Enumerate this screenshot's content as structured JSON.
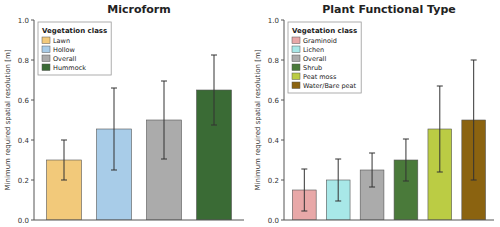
{
  "chart_data": [
    {
      "type": "bar",
      "title": "Microform",
      "ylabel": "Minimum required spatial resolution [m]",
      "categories": [
        "Lawn",
        "Hollow",
        "Overall",
        "Hummock"
      ],
      "values": [
        0.3,
        0.455,
        0.5,
        0.65
      ],
      "errors": [
        0.1,
        0.205,
        0.195,
        0.175
      ],
      "colors": [
        "#F2C97A",
        "#A8CCE8",
        "#ABABAB",
        "#3A6B35"
      ],
      "ylim": [
        0.0,
        1.0
      ],
      "yticks": [
        {
          "value": 0.0,
          "label": "0.0"
        },
        0.2,
        0.4,
        0.6,
        0.8,
        {
          "value": 1.0,
          "label": "1.0"
        }
      ],
      "legend": "upper-left",
      "legend_title": "Vegetation class",
      "tick_labels": "y"
    },
    {
      "type": "bar",
      "title": "Plant Functional Type",
      "ylabel": "Minimum required spatial resolution [m]",
      "categories": [
        "Graminoid",
        "Lichen",
        "Overall",
        "Shrub",
        "Peat moss",
        "Water/Bare peat"
      ],
      "values": [
        0.15,
        0.2,
        0.25,
        0.3,
        0.455,
        0.5
      ],
      "errors": [
        0.105,
        0.105,
        0.085,
        0.105,
        0.215,
        0.3
      ],
      "colors": [
        "#E8A8A8",
        "#A8E8E8",
        "#ABABAB",
        "#4A7A3A",
        "#BBCC44",
        "#8B6310"
      ],
      "ylim": [
        0.0,
        1.0
      ],
      "yticks": [
        {
          "value": 0.0,
          "label": "0.0"
        },
        0.2,
        0.4,
        0.6,
        0.8,
        {
          "value": 1.0,
          "label": "1.0"
        }
      ],
      "legend": "upper-left",
      "legend_title": "Vegetation class",
      "tick_labels": "y"
    }
  ]
}
